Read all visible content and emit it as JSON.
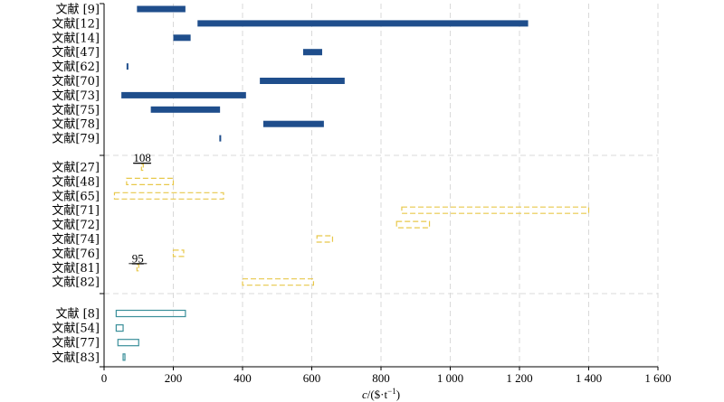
{
  "chart_data": {
    "type": "bar",
    "xlabel_var": "c",
    "xlabel_unit": "/($·t",
    "xlabel_exp": "−1",
    "xlabel_close": ")",
    "xlim": [
      0,
      1600
    ],
    "xticks": [
      {
        "value": 0,
        "label": "0"
      },
      {
        "value": 200,
        "label": "200"
      },
      {
        "value": 400,
        "label": "400"
      },
      {
        "value": 600,
        "label": "600"
      },
      {
        "value": 800,
        "label": "800"
      },
      {
        "value": 1000,
        "label": "1 000"
      },
      {
        "value": 1200,
        "label": "1 200"
      },
      {
        "value": 1400,
        "label": "1 400"
      },
      {
        "value": 1600,
        "label": "1 600"
      }
    ],
    "grid": "vertical dashed",
    "groups": [
      {
        "style": "solid",
        "color": "#1f4e8c",
        "rows": [
          {
            "label": "文献 [9]",
            "min": 95,
            "max": 235
          },
          {
            "label": "文献[12]",
            "min": 270,
            "max": 1225
          },
          {
            "label": "文献[14]",
            "min": 200,
            "max": 250
          },
          {
            "label": "文献[47]",
            "min": 575,
            "max": 630
          },
          {
            "label": "文献[62]",
            "min": 65,
            "max": 70
          },
          {
            "label": "文献[70]",
            "min": 450,
            "max": 695
          },
          {
            "label": "文献[73]",
            "min": 50,
            "max": 410
          },
          {
            "label": "文献[75]",
            "min": 135,
            "max": 335
          },
          {
            "label": "文献[78]",
            "min": 460,
            "max": 635
          },
          {
            "label": "文献[79]",
            "min": 333,
            "max": 338
          }
        ]
      },
      {
        "style": "dashed",
        "color": "#e8c84a",
        "rows": [
          {
            "label": "文献[27]",
            "min": 108,
            "max": 112,
            "annotation": "108"
          },
          {
            "label": "文献[48]",
            "min": 65,
            "max": 200
          },
          {
            "label": "文献[65]",
            "min": 30,
            "max": 345
          },
          {
            "label": "文献[71]",
            "min": 860,
            "max": 1400
          },
          {
            "label": "文献[72]",
            "min": 845,
            "max": 940
          },
          {
            "label": "文献[74]",
            "min": 615,
            "max": 660
          },
          {
            "label": "文献[76]",
            "min": 200,
            "max": 230
          },
          {
            "label": "文献[81]",
            "min": 95,
            "max": 100,
            "annotation": "95"
          },
          {
            "label": "文献[82]",
            "min": 400,
            "max": 605
          }
        ]
      },
      {
        "style": "outline",
        "color": "#3a8f9a",
        "rows": [
          {
            "label": "文献 [8]",
            "min": 35,
            "max": 235
          },
          {
            "label": "文献[54]",
            "min": 35,
            "max": 55
          },
          {
            "label": "文献[77]",
            "min": 40,
            "max": 100
          },
          {
            "label": "文献[83]",
            "min": 55,
            "max": 60
          }
        ]
      }
    ]
  }
}
